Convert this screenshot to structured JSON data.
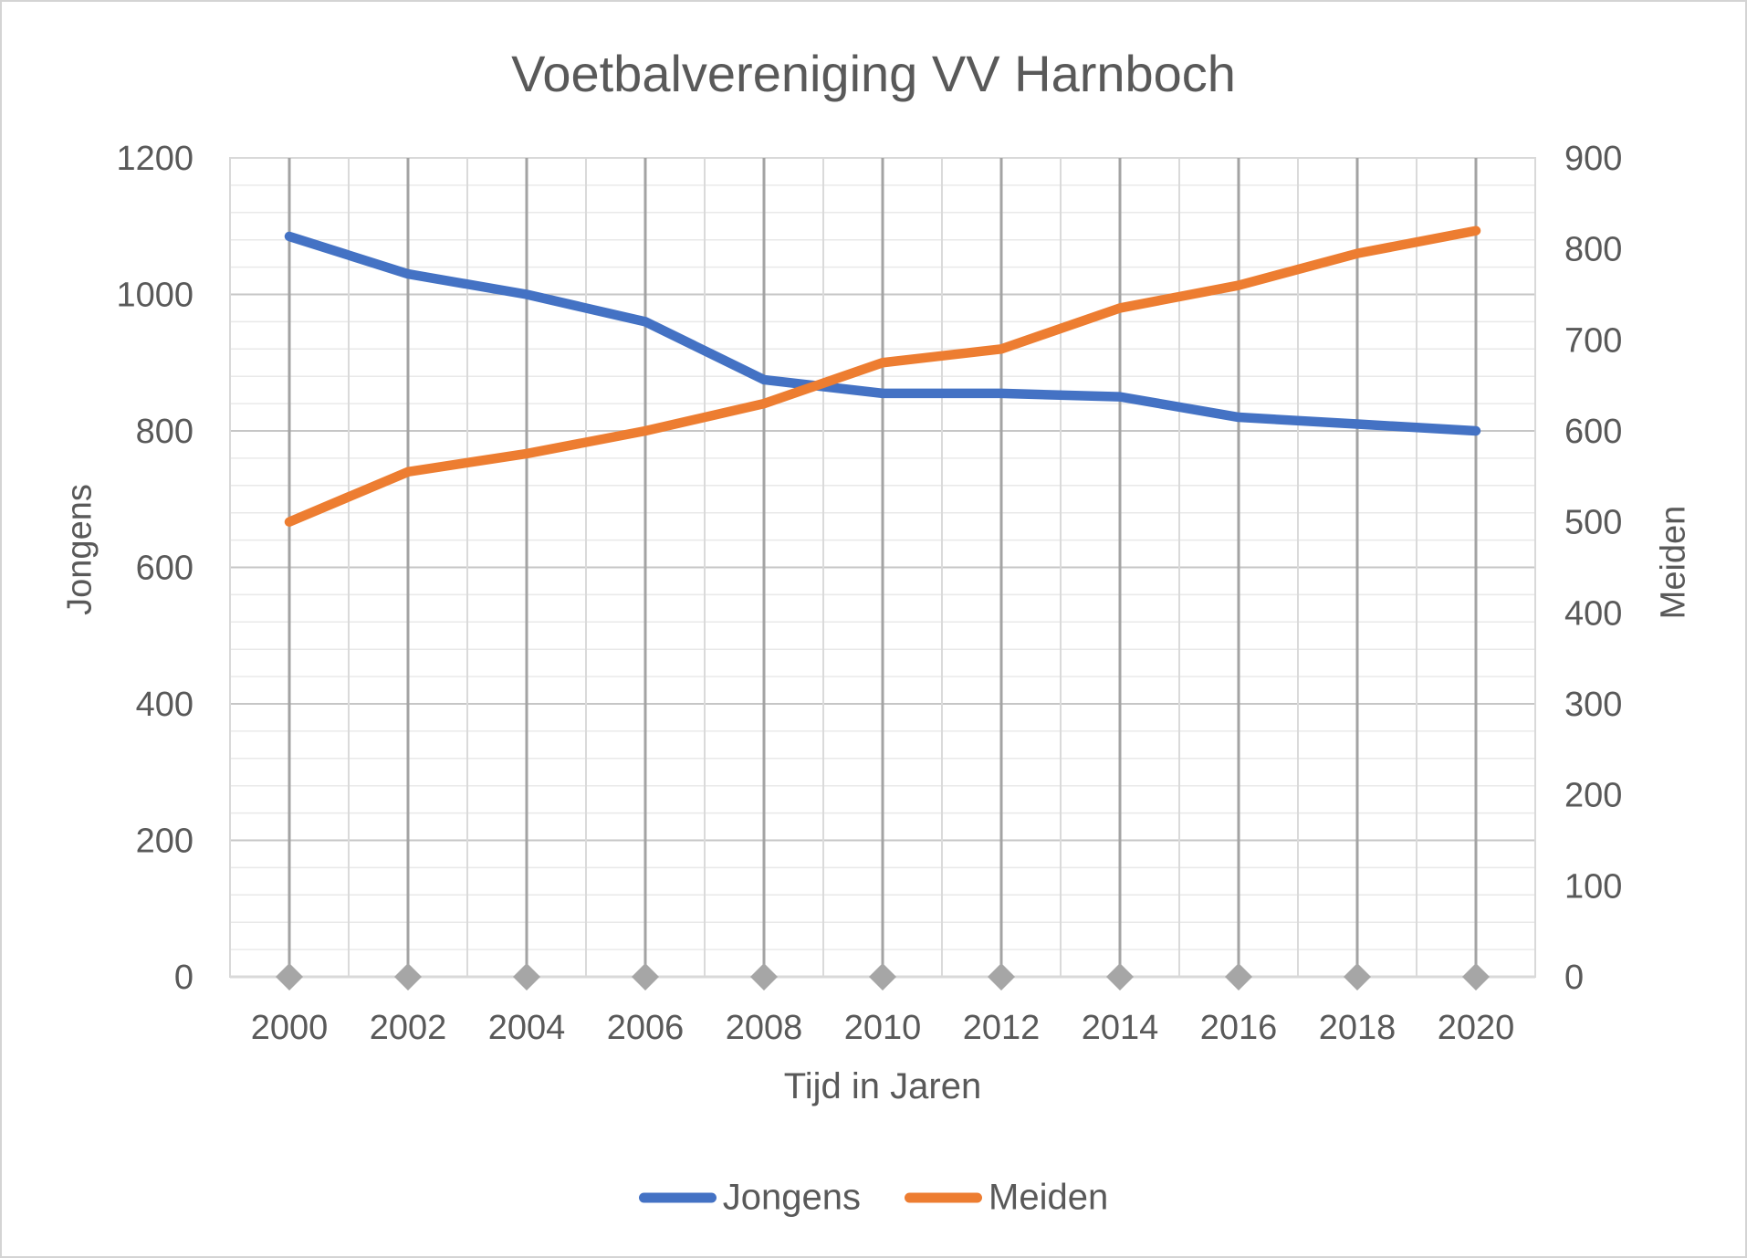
{
  "title": "Voetbalvereniging VV Harnboch",
  "colors": {
    "series_jongens": "#4472C4",
    "series_meiden": "#ED7D31",
    "text": "#595959",
    "gridline_minor_h": "#e9e9e9",
    "gridline_major_h": "#c6c6c6",
    "gridline_boundary_v": "#dadada",
    "gridline_category_v": "#a3a3a3",
    "plot_border": "#d9d9d9",
    "axis_line": "#d9d9d9",
    "axis_marker": "#a6a6a6"
  },
  "chart_data": {
    "type": "line",
    "title": "Voetbalvereniging VV Harnboch",
    "xlabel": "Tijd in Jaren",
    "ylabel_left": "Jongens",
    "ylabel_right": "Meiden",
    "categories": [
      "2000",
      "2002",
      "2004",
      "2006",
      "2008",
      "2010",
      "2012",
      "2014",
      "2016",
      "2018",
      "2020"
    ],
    "series": [
      {
        "name": "Jongens",
        "axis": "left",
        "color": "#4472C4",
        "values": [
          1085,
          1030,
          1000,
          960,
          875,
          855,
          855,
          850,
          820,
          810,
          800
        ]
      },
      {
        "name": "Meiden",
        "axis": "right",
        "color": "#ED7D31",
        "values": [
          500,
          555,
          575,
          600,
          630,
          675,
          690,
          735,
          760,
          795,
          820
        ]
      }
    ],
    "left_axis": {
      "min": 0,
      "max": 1200,
      "major_unit": 200,
      "minor_unit": 40,
      "ticks": [
        0,
        200,
        400,
        600,
        800,
        1000,
        1200
      ]
    },
    "right_axis": {
      "min": 0,
      "max": 900,
      "major_unit": 100,
      "ticks": [
        0,
        100,
        200,
        300,
        400,
        500,
        600,
        700,
        800,
        900
      ]
    },
    "grid": {
      "horizontal_minor": true,
      "vertical_boundary": true,
      "vertical_category": true
    },
    "legend_position": "bottom",
    "category_axis_markers": "diamond"
  },
  "legend": {
    "items": [
      {
        "label": "Jongens",
        "color": "#4472C4"
      },
      {
        "label": "Meiden",
        "color": "#ED7D31"
      }
    ]
  }
}
